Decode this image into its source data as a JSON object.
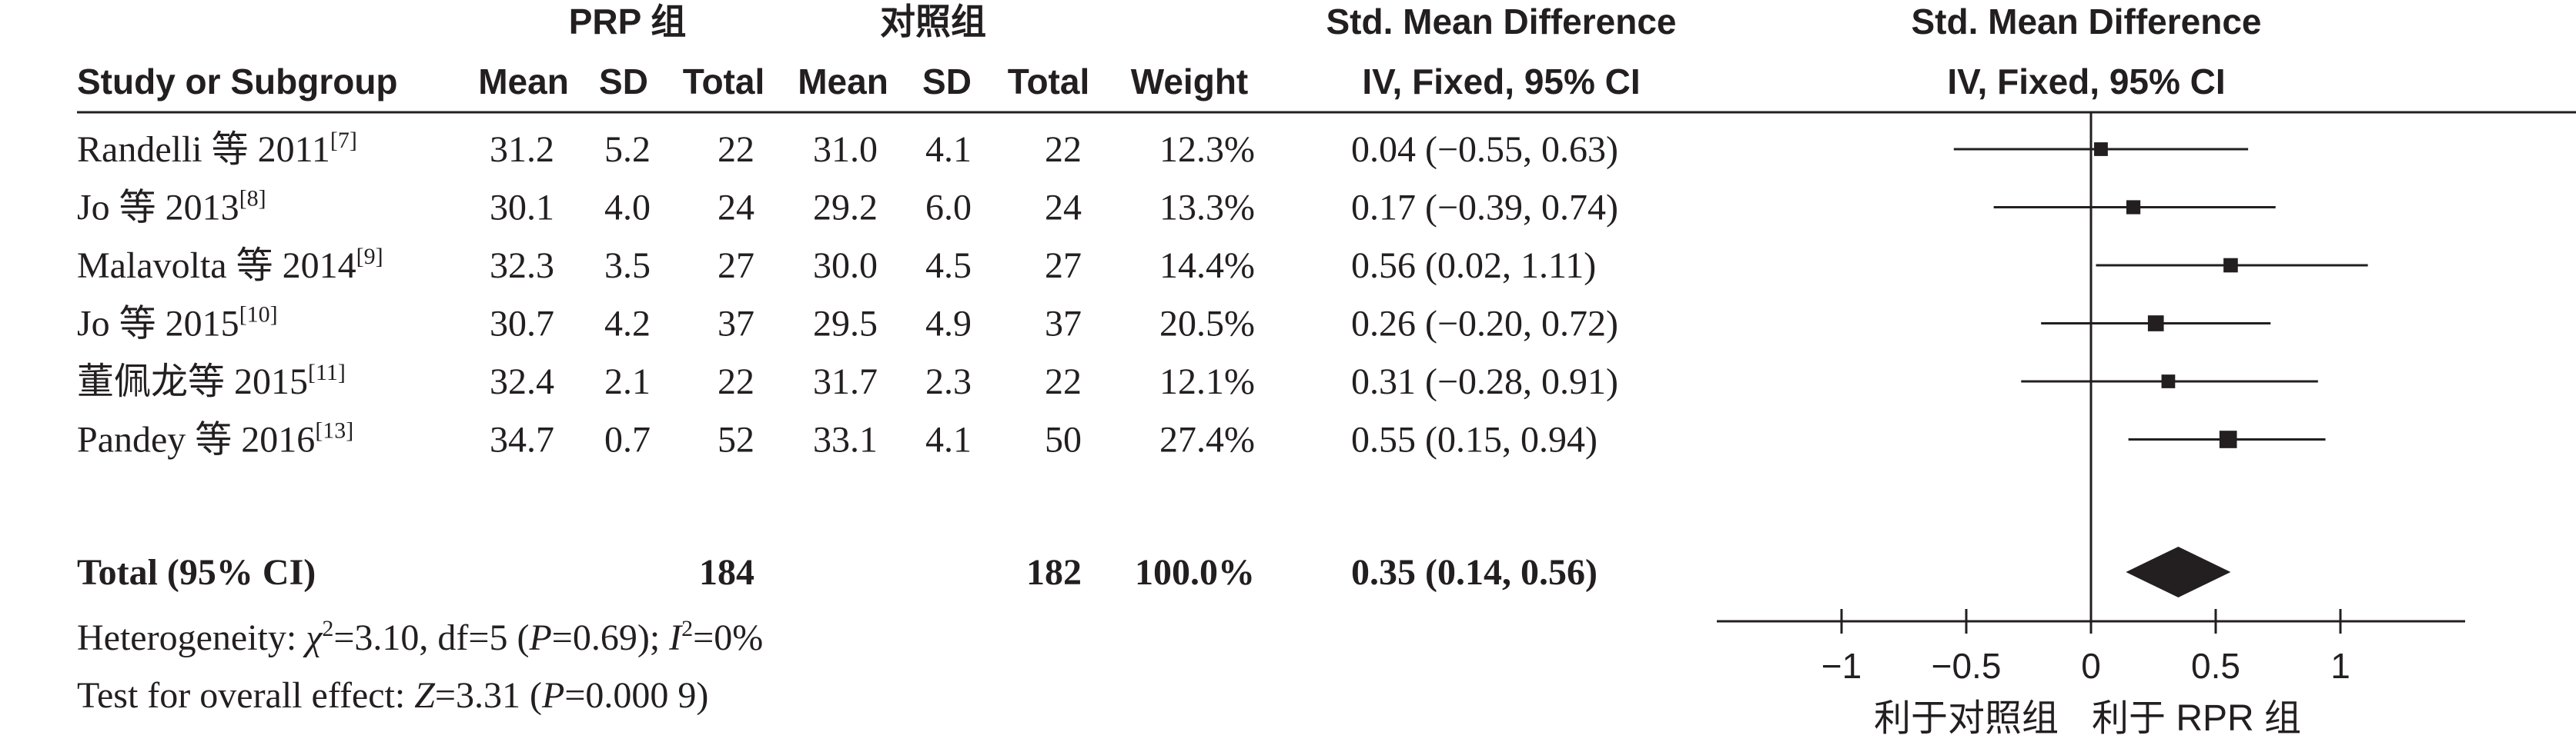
{
  "headers": {
    "group1": "PRP 组",
    "group2": "对照组",
    "study": "Study or Subgroup",
    "mean1": "Mean",
    "sd1": "SD",
    "total1": "Total",
    "mean2": "Mean",
    "sd2": "SD",
    "total2": "Total",
    "weight": "Weight",
    "effect_title": "Std. Mean Difference",
    "effect_method": "IV, Fixed, 95% CI",
    "plot_title": "Std. Mean Difference",
    "plot_method": "IV, Fixed, 95% CI"
  },
  "summary": {
    "label": "Total (95% CI)",
    "total1": "184",
    "total2": "182",
    "weight": "100.0%",
    "ci_text": "0.35 (0.14, 0.56)"
  },
  "heterogeneity": {
    "prefix": "Heterogeneity: ",
    "chi": "χ",
    "chi_sup": "2",
    "chi_val": "=3.10, df=5 (",
    "p1": "P",
    "p1_val": "=0.69); ",
    "i2": "I",
    "i2_sup": "2",
    "i2_val": "=0%"
  },
  "overall": {
    "prefix": "Test for overall effect: ",
    "z": "Z",
    "z_val": "=3.31 (",
    "p": "P",
    "p_val": "=0.000 9)"
  },
  "axis": {
    "ticks": [
      "−1",
      "−0.5",
      "0",
      "0.5",
      "1"
    ],
    "left_label": "利于对照组",
    "right_label": "利于 RPR 组"
  },
  "chart_data": {
    "type": "forest",
    "xlim": [
      -1.5,
      1.5
    ],
    "tick_values": [
      -1,
      -0.5,
      0,
      0.5,
      1
    ],
    "studies": [
      {
        "name": "Randelli 等 2011",
        "ref": "[7]",
        "mean1": "31.2",
        "sd1": "5.2",
        "total1": "22",
        "mean2": "31.0",
        "sd2": "4.1",
        "total2": "22",
        "weight_text": "12.3%",
        "ci_text": "0.04 (−0.55, 0.63)",
        "est": 0.04,
        "lo": -0.55,
        "hi": 0.63,
        "weight": 12.3
      },
      {
        "name": "Jo 等 2013",
        "ref": "[8]",
        "mean1": "30.1",
        "sd1": "4.0",
        "total1": "24",
        "mean2": "29.2",
        "sd2": "6.0",
        "total2": "24",
        "weight_text": "13.3%",
        "ci_text": "0.17 (−0.39, 0.74)",
        "est": 0.17,
        "lo": -0.39,
        "hi": 0.74,
        "weight": 13.3
      },
      {
        "name": "Malavolta 等 2014",
        "ref": "[9]",
        "mean1": "32.3",
        "sd1": "3.5",
        "total1": "27",
        "mean2": "30.0",
        "sd2": "4.5",
        "total2": "27",
        "weight_text": "14.4%",
        "ci_text": "0.56 (0.02, 1.11)",
        "est": 0.56,
        "lo": 0.02,
        "hi": 1.11,
        "weight": 14.4
      },
      {
        "name": "Jo 等 2015",
        "ref": "[10]",
        "mean1": "30.7",
        "sd1": "4.2",
        "total1": "37",
        "mean2": "29.5",
        "sd2": "4.9",
        "total2": "37",
        "weight_text": "20.5%",
        "ci_text": "0.26 (−0.20, 0.72)",
        "est": 0.26,
        "lo": -0.2,
        "hi": 0.72,
        "weight": 20.5
      },
      {
        "name": "董佩龙等 2015",
        "ref": "[11]",
        "mean1": "32.4",
        "sd1": "2.1",
        "total1": "22",
        "mean2": "31.7",
        "sd2": "2.3",
        "total2": "22",
        "weight_text": "12.1%",
        "ci_text": "0.31 (−0.28, 0.91)",
        "est": 0.31,
        "lo": -0.28,
        "hi": 0.91,
        "weight": 12.1
      },
      {
        "name": "Pandey 等 2016",
        "ref": "[13]",
        "mean1": "34.7",
        "sd1": "0.7",
        "total1": "52",
        "mean2": "33.1",
        "sd2": "4.1",
        "total2": "50",
        "weight_text": "27.4%",
        "ci_text": "0.55 (0.15, 0.94)",
        "est": 0.55,
        "lo": 0.15,
        "hi": 0.94,
        "weight": 27.4
      }
    ],
    "pooled": {
      "est": 0.35,
      "lo": 0.14,
      "hi": 0.56
    }
  }
}
